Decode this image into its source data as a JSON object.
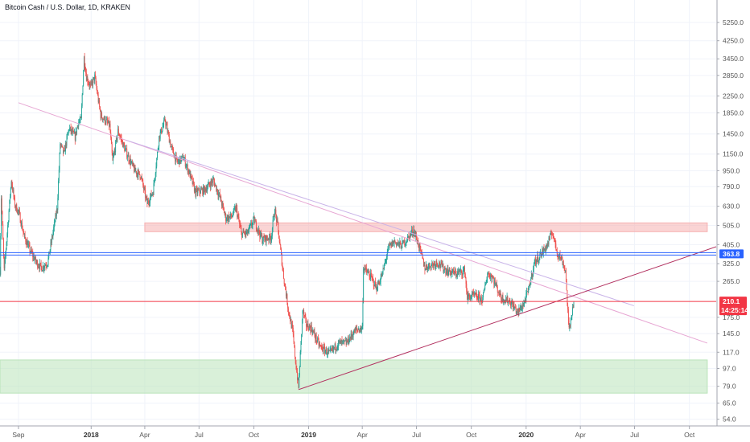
{
  "chart_data": {
    "type": "candlestick",
    "title": "Bitcoin Cash / U.S. Dollar, 1D, KRAKEN",
    "y_scale": "log",
    "y_range": [
      50,
      6800
    ],
    "x_range": [
      "2017-08-01",
      "2020-11-15"
    ],
    "y_ticks": [
      "5250.0",
      "4250.0",
      "3450.0",
      "2850.0",
      "2250.0",
      "1850.0",
      "1450.0",
      "1150.0",
      "950.0",
      "790.0",
      "630.0",
      "505.0",
      "405.0",
      "325.0",
      "265.0",
      "175.0",
      "145.0",
      "117.0",
      "97.0",
      "79.0",
      "65.0",
      "54.0"
    ],
    "x_ticks": [
      {
        "label": "Sep",
        "date": "2017-09-01",
        "bold": false
      },
      {
        "label": "2018",
        "date": "2018-01-01",
        "bold": true
      },
      {
        "label": "Apr",
        "date": "2018-04-01",
        "bold": false
      },
      {
        "label": "Jul",
        "date": "2018-07-01",
        "bold": false
      },
      {
        "label": "Oct",
        "date": "2018-10-01",
        "bold": false
      },
      {
        "label": "2019",
        "date": "2019-01-01",
        "bold": true
      },
      {
        "label": "Apr",
        "date": "2019-04-01",
        "bold": false
      },
      {
        "label": "Jul",
        "date": "2019-07-01",
        "bold": false
      },
      {
        "label": "Oct",
        "date": "2019-10-01",
        "bold": false
      },
      {
        "label": "2020",
        "date": "2020-01-01",
        "bold": true
      },
      {
        "label": "Apr",
        "date": "2020-04-01",
        "bold": false
      },
      {
        "label": "Jul",
        "date": "2020-07-01",
        "bold": false
      },
      {
        "label": "Oct",
        "date": "2020-10-01",
        "bold": false
      }
    ],
    "price_path": [
      [
        "2017-08-01",
        300
      ],
      [
        "2017-08-03",
        700
      ],
      [
        "2017-08-08",
        300
      ],
      [
        "2017-08-15",
        550
      ],
      [
        "2017-08-20",
        850
      ],
      [
        "2017-08-26",
        640
      ],
      [
        "2017-09-02",
        580
      ],
      [
        "2017-09-10",
        450
      ],
      [
        "2017-09-20",
        380
      ],
      [
        "2017-10-01",
        330
      ],
      [
        "2017-10-10",
        310
      ],
      [
        "2017-10-20",
        330
      ],
      [
        "2017-10-28",
        450
      ],
      [
        "2017-11-05",
        620
      ],
      [
        "2017-11-10",
        1300
      ],
      [
        "2017-11-16",
        1150
      ],
      [
        "2017-11-25",
        1550
      ],
      [
        "2017-12-05",
        1400
      ],
      [
        "2017-12-10",
        1650
      ],
      [
        "2017-12-15",
        1700
      ],
      [
        "2017-12-20",
        3500
      ],
      [
        "2017-12-24",
        2800
      ],
      [
        "2017-12-31",
        2500
      ],
      [
        "2018-01-07",
        2800
      ],
      [
        "2018-01-17",
        1800
      ],
      [
        "2018-02-01",
        1600
      ],
      [
        "2018-02-06",
        1050
      ],
      [
        "2018-02-15",
        1500
      ],
      [
        "2018-02-25",
        1250
      ],
      [
        "2018-03-05",
        1100
      ],
      [
        "2018-03-15",
        950
      ],
      [
        "2018-03-25",
        900
      ],
      [
        "2018-04-05",
        650
      ],
      [
        "2018-04-15",
        750
      ],
      [
        "2018-04-25",
        1400
      ],
      [
        "2018-05-05",
        1700
      ],
      [
        "2018-05-15",
        1250
      ],
      [
        "2018-05-25",
        1050
      ],
      [
        "2018-06-05",
        1100
      ],
      [
        "2018-06-15",
        920
      ],
      [
        "2018-06-25",
        740
      ],
      [
        "2018-07-10",
        760
      ],
      [
        "2018-07-25",
        850
      ],
      [
        "2018-08-05",
        700
      ],
      [
        "2018-08-15",
        550
      ],
      [
        "2018-08-25",
        560
      ],
      [
        "2018-09-01",
        620
      ],
      [
        "2018-09-10",
        460
      ],
      [
        "2018-09-20",
        460
      ],
      [
        "2018-10-01",
        540
      ],
      [
        "2018-10-15",
        430
      ],
      [
        "2018-10-30",
        440
      ],
      [
        "2018-11-05",
        610
      ],
      [
        "2018-11-10",
        500
      ],
      [
        "2018-11-20",
        280
      ],
      [
        "2018-11-28",
        190
      ],
      [
        "2018-12-05",
        150
      ],
      [
        "2018-12-10",
        105
      ],
      [
        "2018-12-15",
        78
      ],
      [
        "2018-12-22",
        190
      ],
      [
        "2018-12-28",
        160
      ],
      [
        "2019-01-05",
        155
      ],
      [
        "2019-01-20",
        125
      ],
      [
        "2019-02-05",
        115
      ],
      [
        "2019-02-20",
        130
      ],
      [
        "2019-03-05",
        130
      ],
      [
        "2019-03-20",
        150
      ],
      [
        "2019-04-01",
        155
      ],
      [
        "2019-04-03",
        310
      ],
      [
        "2019-04-15",
        280
      ],
      [
        "2019-04-25",
        245
      ],
      [
        "2019-05-05",
        290
      ],
      [
        "2019-05-15",
        390
      ],
      [
        "2019-05-25",
        420
      ],
      [
        "2019-06-05",
        400
      ],
      [
        "2019-06-15",
        430
      ],
      [
        "2019-06-26",
        480
      ],
      [
        "2019-07-05",
        400
      ],
      [
        "2019-07-15",
        310
      ],
      [
        "2019-07-25",
        320
      ],
      [
        "2019-08-05",
        330
      ],
      [
        "2019-08-20",
        300
      ],
      [
        "2019-09-05",
        290
      ],
      [
        "2019-09-20",
        300
      ],
      [
        "2019-09-24",
        220
      ],
      [
        "2019-10-05",
        225
      ],
      [
        "2019-10-20",
        215
      ],
      [
        "2019-10-28",
        290
      ],
      [
        "2019-11-05",
        280
      ],
      [
        "2019-11-20",
        220
      ],
      [
        "2019-12-05",
        210
      ],
      [
        "2019-12-18",
        185
      ],
      [
        "2019-12-28",
        205
      ],
      [
        "2020-01-05",
        240
      ],
      [
        "2020-01-15",
        330
      ],
      [
        "2020-01-25",
        360
      ],
      [
        "2020-02-05",
        400
      ],
      [
        "2020-02-14",
        470
      ],
      [
        "2020-02-22",
        370
      ],
      [
        "2020-03-01",
        340
      ],
      [
        "2020-03-07",
        300
      ],
      [
        "2020-03-12",
        165
      ],
      [
        "2020-03-13",
        150
      ],
      [
        "2020-03-17",
        180
      ],
      [
        "2020-03-21",
        210
      ]
    ],
    "zones": [
      {
        "name": "resistance-zone",
        "from": "2018-04-01",
        "to": "2020-10-31",
        "low": 470,
        "high": 520,
        "color": "#f6b0b0"
      },
      {
        "name": "support-zone",
        "from": "2017-08-01",
        "to": "2020-10-31",
        "low": 73,
        "high": 107,
        "color": "#b9e3b9"
      }
    ],
    "horizontal_lines": [
      {
        "price": 363.8,
        "color": "#2962ff",
        "double": true
      },
      {
        "price": 210.1,
        "color": "#f23645",
        "double": false
      }
    ],
    "trend_lines": [
      {
        "from": [
          "2017-09-01",
          2080
        ],
        "to": [
          "2020-10-31",
          130
        ],
        "color": "#e7a6d3"
      },
      {
        "from": [
          "2018-03-01",
          1350
        ],
        "to": [
          "2020-06-30",
          200
        ],
        "color": "#c9b3e8"
      },
      {
        "from": [
          "2018-12-15",
          76
        ],
        "to": [
          "2020-11-15",
          395
        ],
        "color": "#b2305f"
      }
    ],
    "labels": {
      "last_price": "210.1",
      "countdown": "14:25:14",
      "level_price": "363.8"
    },
    "colors": {
      "up": "#26a69a",
      "down": "#ef5350",
      "grid": "#f0f3fa",
      "axis_text": "#555555"
    }
  }
}
